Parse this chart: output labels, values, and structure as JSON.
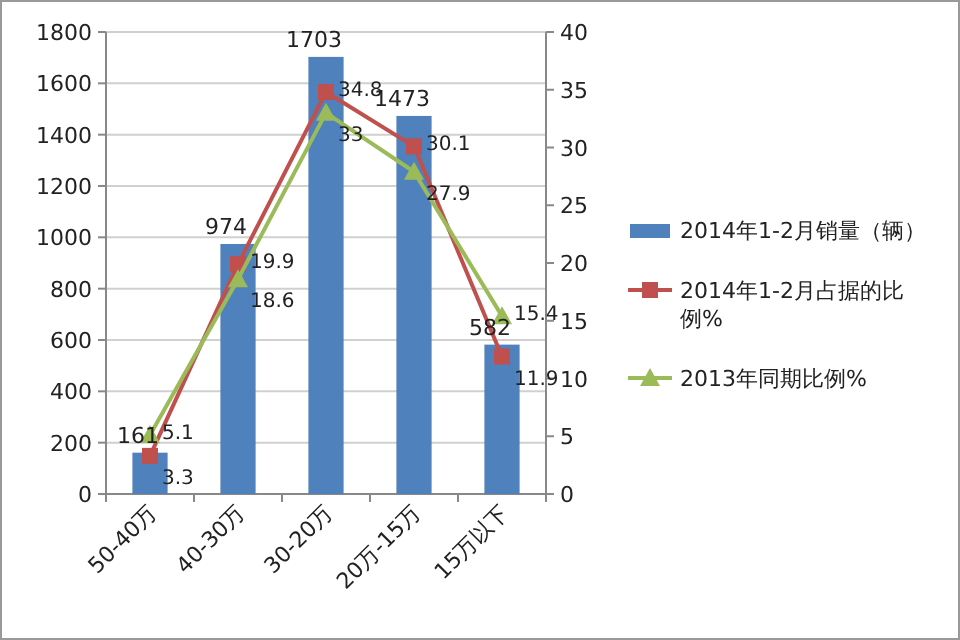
{
  "chart_data": {
    "type": "bar",
    "categories": [
      "50-40万",
      "40-30万",
      "30-20万",
      "20万-15万",
      "15万以下"
    ],
    "series": [
      {
        "name": "2014年1-2月销量（辆）",
        "color": "#4f81bd",
        "values": [
          161,
          974,
          1703,
          1473,
          582
        ]
      },
      {
        "name": "2014年1-2月占据的比例%",
        "type": "line",
        "axis": "y2",
        "marker": "square",
        "color": "#c0504d",
        "values": [
          3.3,
          19.9,
          34.8,
          30.1,
          11.9
        ]
      },
      {
        "name": "2013年同期比例%",
        "type": "line",
        "axis": "y2",
        "marker": "triangle",
        "color": "#9bbb59",
        "values": [
          5.1,
          18.6,
          33,
          27.9,
          15.4
        ]
      }
    ],
    "ylim": [
      0,
      1800
    ],
    "yticks": [
      0,
      200,
      400,
      600,
      800,
      1000,
      1200,
      1400,
      1600,
      1800
    ],
    "y2lim": [
      0,
      40
    ],
    "y2ticks": [
      0,
      5,
      10,
      15,
      20,
      25,
      30,
      35,
      40
    ],
    "grid": "y",
    "legend": "right",
    "data_labels": true
  }
}
